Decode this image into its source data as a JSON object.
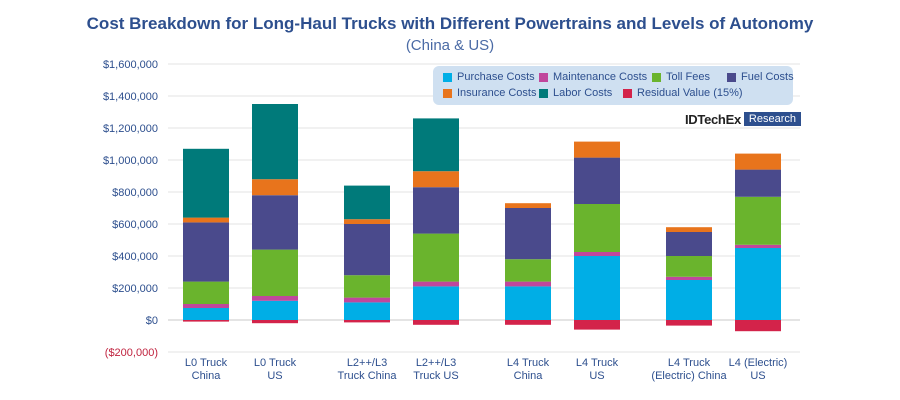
{
  "header": {
    "title": "Cost Breakdown for Long-Haul Trucks with Different Powertrains and Levels of Autonomy",
    "subtitle": "(China & US)"
  },
  "brand": {
    "name": "IDTechEx",
    "tag": "Research"
  },
  "colors": {
    "Purchase Costs": "#00aee6",
    "Maintenance Costs": "#c0479c",
    "Toll Fees": "#6ab42d",
    "Fuel Costs": "#4a4a8c",
    "Insurance Costs": "#e8741c",
    "Labor Costs": "#007a7a",
    "Residual Value (15%)": "#d3234a",
    "title": "#2d4f8e",
    "axis_text": "#2d4f8e",
    "negative_tick": "#c0233f"
  },
  "chart_data": {
    "type": "bar",
    "stacked": true,
    "title": "Cost Breakdown for Long-Haul Trucks with Different Powertrains and Levels of Autonomy",
    "subtitle": "(China & US)",
    "xlabel": "",
    "ylabel": "",
    "ylim": [
      -200000,
      1600000
    ],
    "yticks": [
      -200000,
      0,
      200000,
      400000,
      600000,
      800000,
      1000000,
      1200000,
      1400000,
      1600000
    ],
    "ytick_labels": [
      "($200,000)",
      "$0",
      "$200,000",
      "$400,000",
      "$600,000",
      "$800,000",
      "$1,000,000",
      "$1,200,000",
      "$1,400,000",
      "$1,600,000"
    ],
    "grid": true,
    "legend_position": "top-right",
    "categories": [
      [
        "L0 Truck",
        "China"
      ],
      [
        "L0 Truck",
        "US"
      ],
      [
        "L2++/L3",
        "Truck China"
      ],
      [
        "L2++/L3",
        "Truck US"
      ],
      [
        "L4 Truck",
        "China"
      ],
      [
        "L4 Truck",
        "US"
      ],
      [
        "L4 Truck",
        "(Electric) China"
      ],
      [
        "L4 (Electric)",
        "US"
      ]
    ],
    "series": [
      {
        "name": "Purchase Costs",
        "values": [
          75000,
          120000,
          110000,
          210000,
          210000,
          400000,
          250000,
          450000
        ]
      },
      {
        "name": "Maintenance Costs",
        "values": [
          25000,
          30000,
          30000,
          30000,
          30000,
          25000,
          20000,
          20000
        ]
      },
      {
        "name": "Toll Fees",
        "values": [
          140000,
          290000,
          140000,
          300000,
          140000,
          300000,
          130000,
          300000
        ]
      },
      {
        "name": "Fuel Costs",
        "values": [
          370000,
          340000,
          320000,
          290000,
          320000,
          290000,
          150000,
          170000
        ]
      },
      {
        "name": "Insurance Costs",
        "values": [
          30000,
          100000,
          30000,
          100000,
          30000,
          100000,
          30000,
          100000
        ]
      },
      {
        "name": "Labor Costs",
        "values": [
          430000,
          470000,
          210000,
          330000,
          0,
          0,
          0,
          0
        ]
      },
      {
        "name": "Residual Value (15%)",
        "values": [
          -10000,
          -20000,
          -15000,
          -30000,
          -30000,
          -60000,
          -35000,
          -70000
        ]
      }
    ],
    "legend_rows": [
      [
        "Purchase Costs",
        "Maintenance Costs",
        "Toll Fees",
        "Fuel Costs"
      ],
      [
        "Insurance Costs",
        "Labor Costs",
        "Residual Value (15%)"
      ]
    ]
  }
}
